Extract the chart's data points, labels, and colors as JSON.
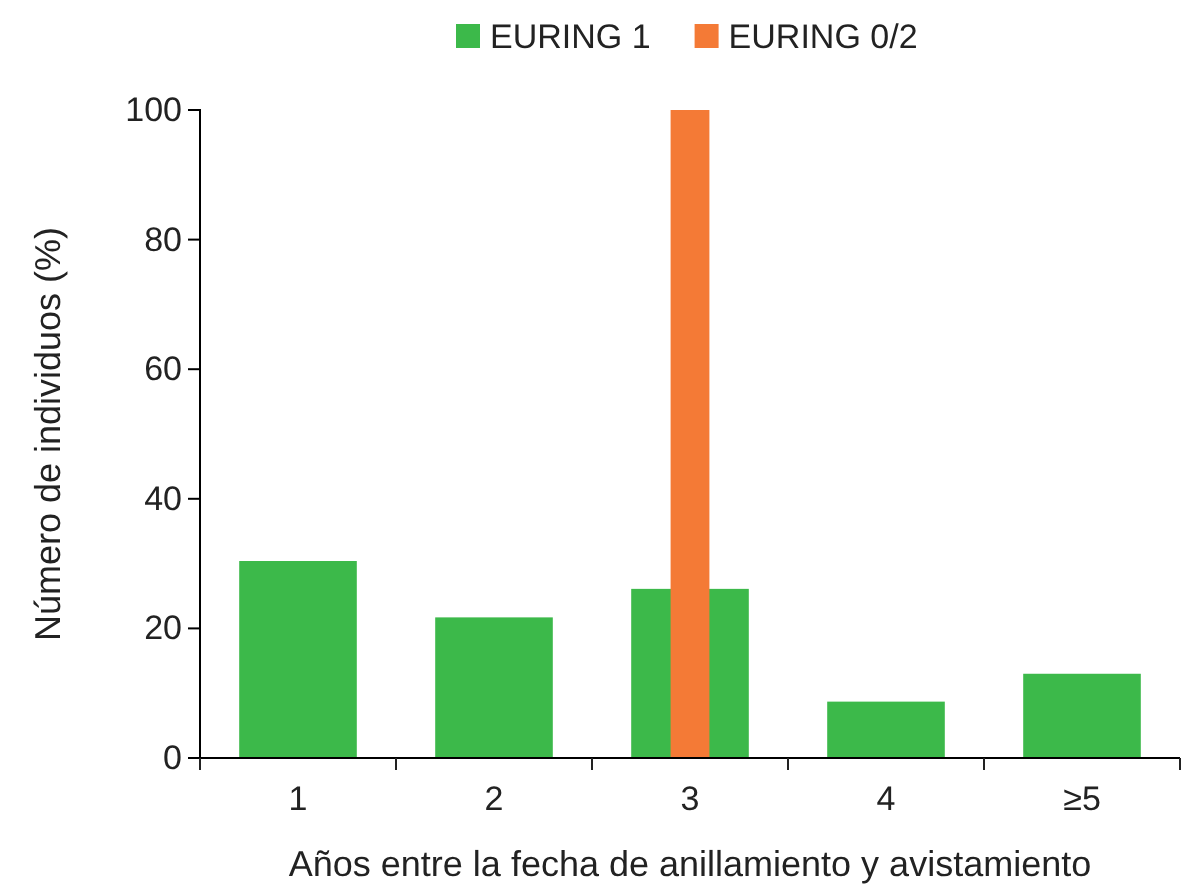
{
  "chart_data": {
    "type": "bar",
    "xlabel": "Años entre la fecha de anillamiento y avistamiento",
    "ylabel": "Número de individuos (%)",
    "categories": [
      "1",
      "2",
      "3",
      "4",
      "≥5"
    ],
    "series": [
      {
        "name": "EURING 1",
        "color": "#3cb94a",
        "values": [
          30.4,
          21.7,
          26.1,
          8.7,
          13.0
        ]
      },
      {
        "name": "EURING 0/2",
        "color": "#f47a36",
        "values": [
          null,
          null,
          100,
          null,
          null
        ]
      }
    ],
    "ylim": [
      0,
      100
    ],
    "yticks": [
      0,
      20,
      40,
      60,
      80,
      100
    ],
    "grid": false,
    "legend": "top"
  }
}
